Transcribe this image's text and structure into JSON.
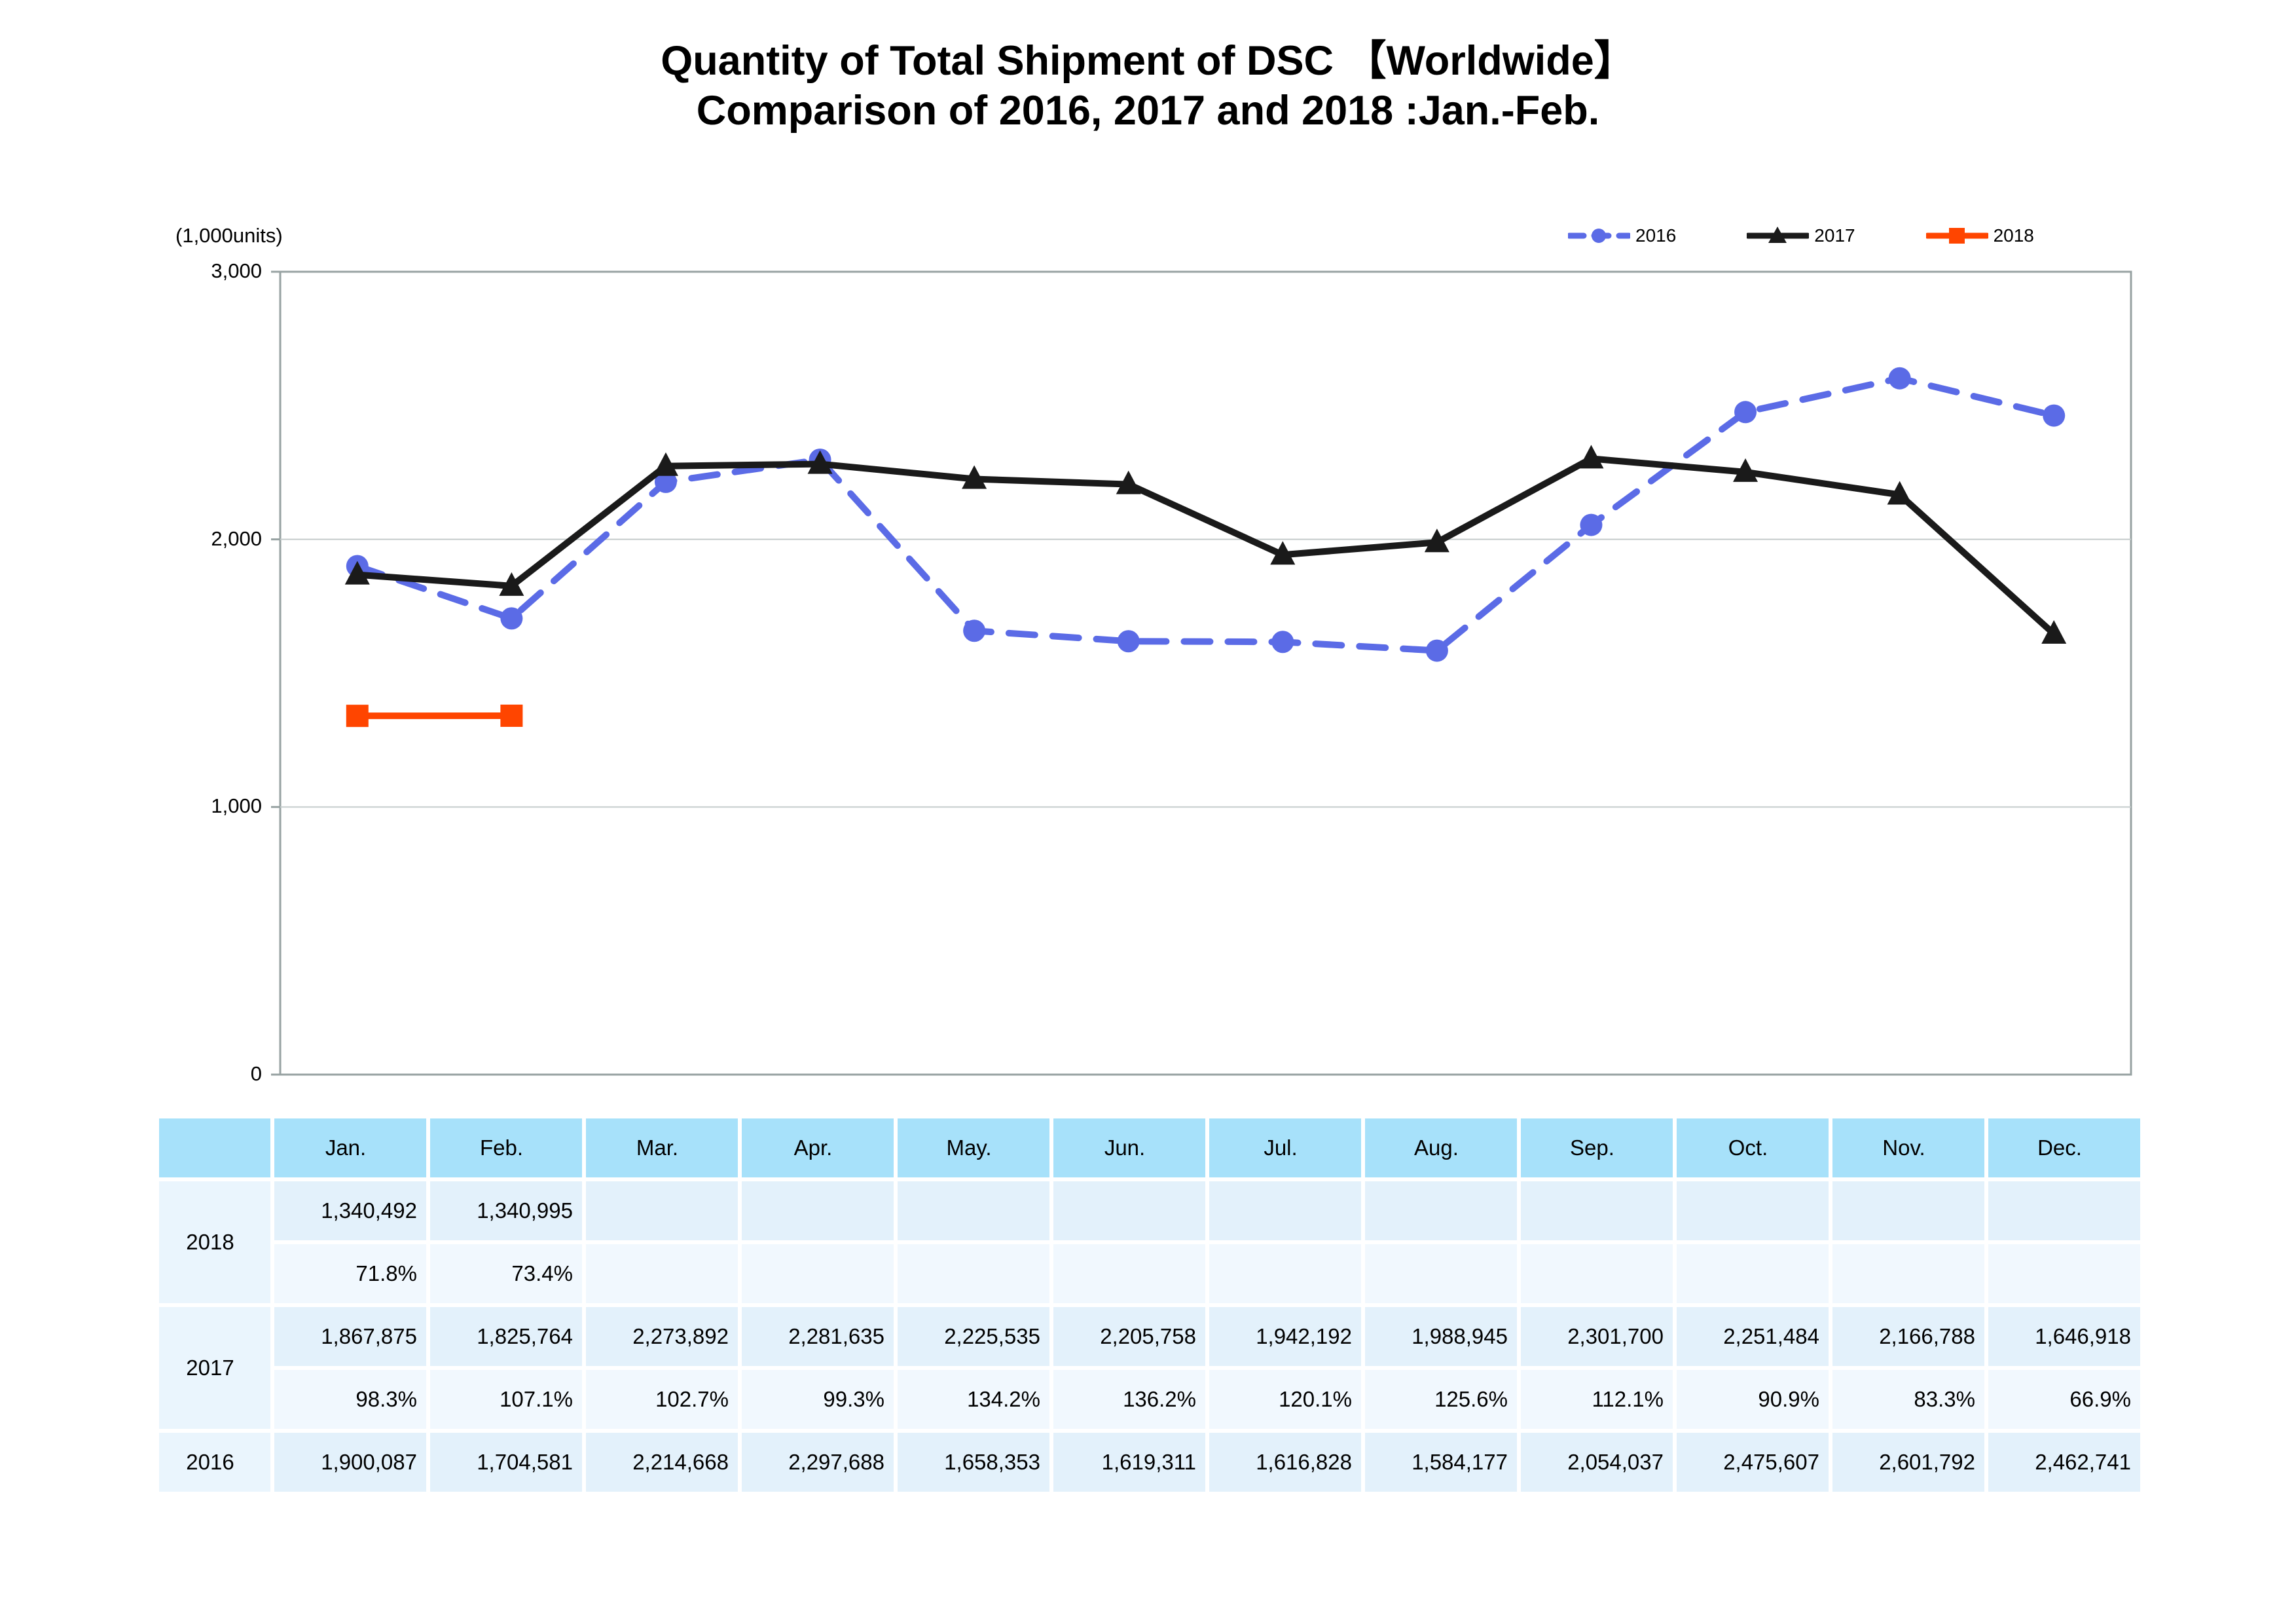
{
  "title": {
    "line1": "Quantity of Total Shipment of DSC 【Worldwide】",
    "line2": "Comparison of 2016, 2017 and 2018 :Jan.-Feb."
  },
  "axis": {
    "unit_label": "(1,000units)",
    "y_ticks": [
      {
        "label": "3,000",
        "value": 3000
      },
      {
        "label": "2,000",
        "value": 2000
      },
      {
        "label": "1,000",
        "value": 1000
      },
      {
        "label": "0",
        "value": 0
      }
    ]
  },
  "legend": [
    {
      "label": "2016",
      "color": "#5B6BE6",
      "style": "dashed",
      "marker": "circle"
    },
    {
      "label": "2017",
      "color": "#1A1A1A",
      "style": "solid",
      "marker": "triangle"
    },
    {
      "label": "2018",
      "color": "#FF4500",
      "style": "solid",
      "marker": "square"
    }
  ],
  "colors": {
    "frame": "#97A2A2",
    "gridline": "#C4CBCB",
    "table_header_bg": "#A7E1FA",
    "table_value_row_bg": "#E3F1FB",
    "table_percent_row_bg": "#F1F8FE",
    "table_year_bg": "#EAF5FD",
    "series_2016": "#5B6BE6",
    "series_2017": "#1A1A1A",
    "series_2018": "#FF4500"
  },
  "chart_data": {
    "type": "line",
    "title": "Quantity of Total Shipment of DSC 【Worldwide】 Comparison of 2016, 2017 and 2018 :Jan.-Feb.",
    "ylabel": "(1,000units)",
    "xlabel": "",
    "ylim": [
      0,
      3000
    ],
    "gridlines": [
      1000,
      2000
    ],
    "legend_position": "top-right",
    "categories": [
      "Jan.",
      "Feb.",
      "Mar.",
      "Apr.",
      "May.",
      "Jun.",
      "Jul.",
      "Aug.",
      "Sep.",
      "Oct.",
      "Nov.",
      "Dec."
    ],
    "series": [
      {
        "name": "2016",
        "color": "#5B6BE6",
        "style": "dashed",
        "marker": "circle",
        "values": [
          1900.1,
          1704.6,
          2214.7,
          2297.7,
          1658.4,
          1619.3,
          1616.8,
          1584.2,
          2054.0,
          2475.6,
          2601.8,
          2462.7
        ]
      },
      {
        "name": "2017",
        "color": "#1A1A1A",
        "style": "solid",
        "marker": "triangle",
        "values": [
          1867.9,
          1825.8,
          2273.9,
          2281.6,
          2225.5,
          2205.8,
          1942.2,
          1988.9,
          2301.7,
          2251.5,
          2166.8,
          1646.9
        ]
      },
      {
        "name": "2018",
        "color": "#FF4500",
        "style": "solid",
        "marker": "square",
        "values": [
          1340.5,
          1341.0,
          null,
          null,
          null,
          null,
          null,
          null,
          null,
          null,
          null,
          null
        ]
      }
    ]
  },
  "table": {
    "corner": "",
    "columns": [
      "Jan.",
      "Feb.",
      "Mar.",
      "Apr.",
      "May.",
      "Jun.",
      "Jul.",
      "Aug.",
      "Sep.",
      "Oct.",
      "Nov.",
      "Dec."
    ],
    "row_groups": [
      {
        "year": "2018",
        "values": [
          "1,340,492",
          "1,340,995",
          "",
          "",
          "",
          "",
          "",
          "",
          "",
          "",
          "",
          ""
        ],
        "percents": [
          "71.8%",
          "73.4%",
          "",
          "",
          "",
          "",
          "",
          "",
          "",
          "",
          "",
          ""
        ]
      },
      {
        "year": "2017",
        "values": [
          "1,867,875",
          "1,825,764",
          "2,273,892",
          "2,281,635",
          "2,225,535",
          "2,205,758",
          "1,942,192",
          "1,988,945",
          "2,301,700",
          "2,251,484",
          "2,166,788",
          "1,646,918"
        ],
        "percents": [
          "98.3%",
          "107.1%",
          "102.7%",
          "99.3%",
          "134.2%",
          "136.2%",
          "120.1%",
          "125.6%",
          "112.1%",
          "90.9%",
          "83.3%",
          "66.9%"
        ]
      },
      {
        "year": "2016",
        "values": [
          "1,900,087",
          "1,704,581",
          "2,214,668",
          "2,297,688",
          "1,658,353",
          "1,619,311",
          "1,616,828",
          "1,584,177",
          "2,054,037",
          "2,475,607",
          "2,601,792",
          "2,462,741"
        ]
      }
    ]
  }
}
